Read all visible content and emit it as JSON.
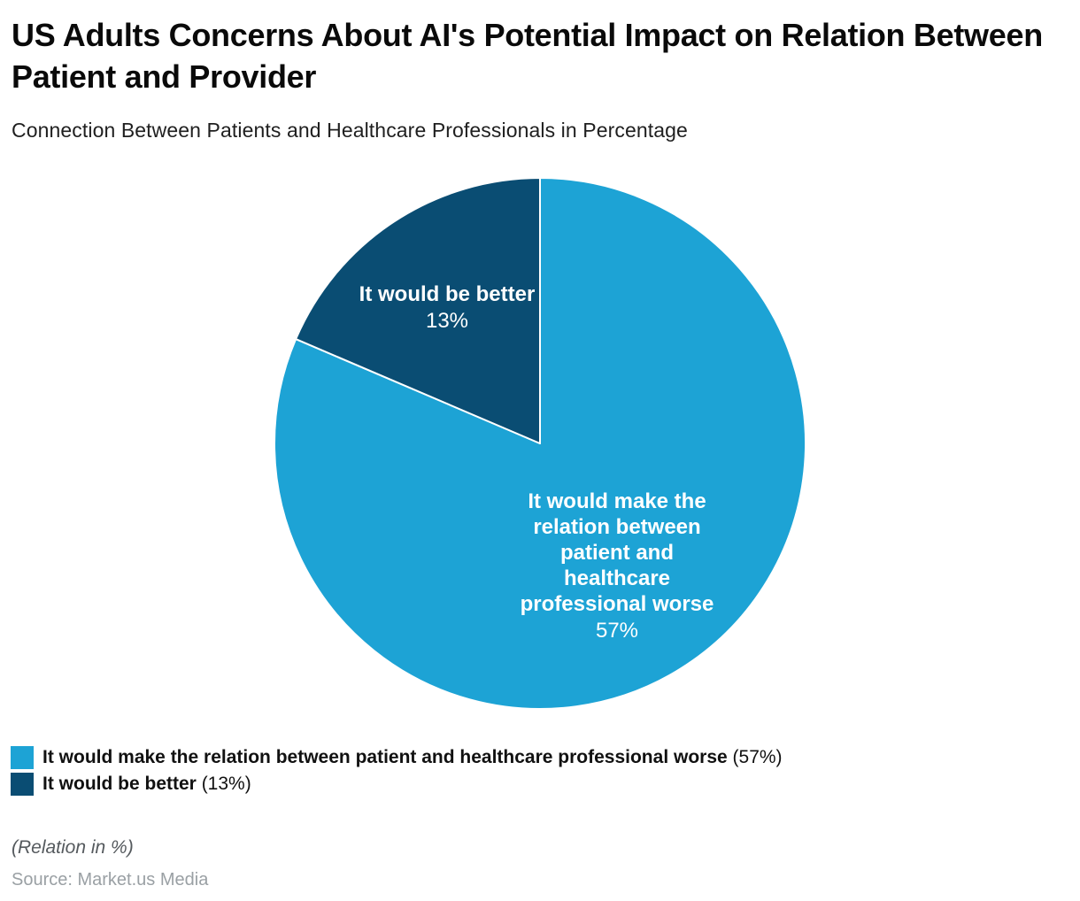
{
  "header": {
    "title": "US Adults Concerns About AI's Potential Impact on Relation Between Patient and Provider",
    "subtitle": "Connection Between Patients and Healthcare Professionals in Percentage"
  },
  "chart_data": {
    "type": "pie",
    "title": "US Adults Concerns About AI's Potential Impact on Relation Between Patient and Provider",
    "subtitle": "Connection Between Patients and Healthcare Professionals in Percentage",
    "unit": "percent",
    "start_angle_deg": 0,
    "slices": [
      {
        "label": "It would make the relation between patient and healthcare professional worse",
        "value": 57,
        "pct_label": "57%",
        "color": "#1da3d5",
        "display_label": "It would make the\nrelation between\npatient and\nhealthcare\nprofessional worse"
      },
      {
        "label": "It would be better",
        "value": 13,
        "pct_label": "13%",
        "color": "#0a4d73",
        "display_label": "It would be better"
      }
    ]
  },
  "legend": {
    "items": [
      {
        "label": "It would make the relation between patient and healthcare professional worse",
        "pct": "(57%)"
      },
      {
        "label": "It would be better",
        "pct": "(13%)"
      }
    ]
  },
  "footer": {
    "note": "(Relation in %)",
    "source": "Source: Market.us Media"
  }
}
